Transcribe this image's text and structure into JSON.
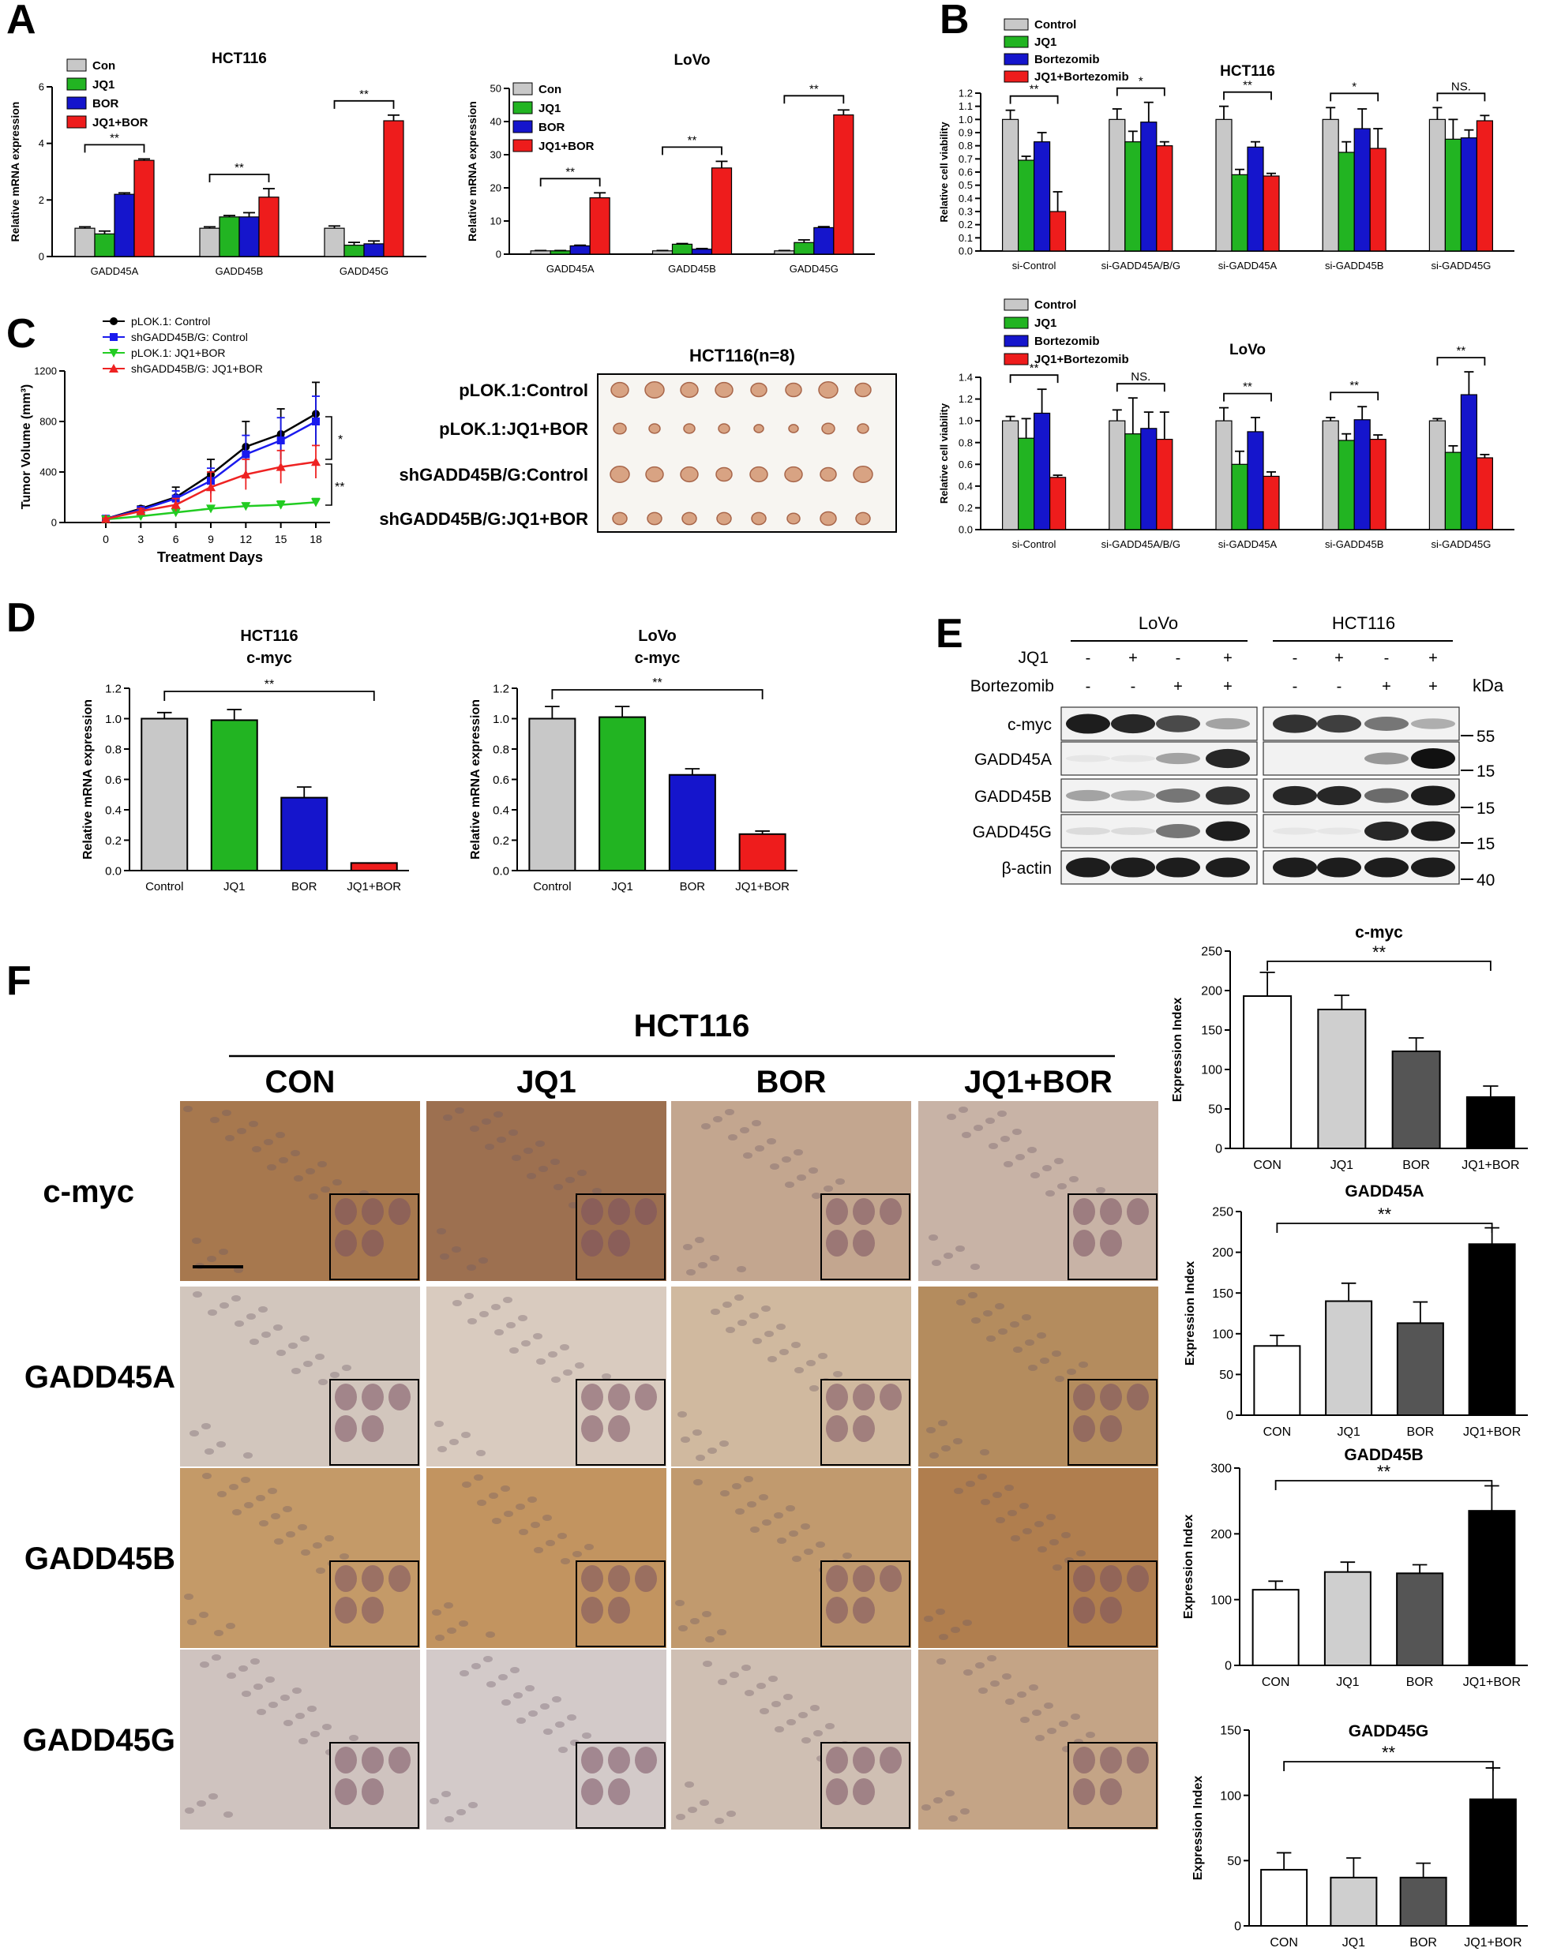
{
  "panels": {
    "A": "A",
    "B": "B",
    "C": "C",
    "D": "D",
    "E": "E",
    "F": "F"
  },
  "colors": {
    "con": "#c8c8c8",
    "jq1": "#22b422",
    "bor": "#1515cc",
    "combo": "#ee1c1c",
    "line_ctrl": "#000000",
    "line_sh_ctrl": "#1a1aee",
    "line_plok_combo": "#22cc22",
    "line_sh_combo": "#ee2222"
  },
  "panel_c_photo": {
    "title": "HCT116(n=8)",
    "rows": [
      "pLOK.1:Control",
      "pLOK.1:JQ1+BOR",
      "shGADD45B/G:Control",
      "shGADD45B/G:JQ1+BOR"
    ]
  },
  "panel_e": {
    "groups": [
      "LoVo",
      "HCT116"
    ],
    "treatment_labels": [
      "JQ1",
      "Bortezomib"
    ],
    "jq1_signs": [
      "-",
      "+",
      "-",
      "+",
      "-",
      "+",
      "-",
      "+"
    ],
    "bor_signs": [
      "-",
      "-",
      "+",
      "+",
      "-",
      "-",
      "+",
      "+"
    ],
    "kda_label": "kDa",
    "rows": [
      {
        "name": "c-myc",
        "marker": "55",
        "lovo": [
          0.95,
          0.9,
          0.75,
          0.35
        ],
        "hct": [
          0.85,
          0.8,
          0.55,
          0.3
        ]
      },
      {
        "name": "GADD45A",
        "marker": "15",
        "lovo": [
          0.05,
          0.05,
          0.35,
          0.9
        ],
        "hct": [
          0.0,
          0.0,
          0.4,
          1.0
        ]
      },
      {
        "name": "GADD45B",
        "marker": "15",
        "lovo": [
          0.35,
          0.3,
          0.55,
          0.85
        ],
        "hct": [
          0.9,
          0.9,
          0.6,
          0.95
        ]
      },
      {
        "name": "GADD45G",
        "marker": "15",
        "lovo": [
          0.1,
          0.1,
          0.55,
          0.95
        ],
        "hct": [
          0.05,
          0.05,
          0.9,
          0.95
        ]
      },
      {
        "name": "β-actin",
        "marker": "40",
        "lovo": [
          0.95,
          0.95,
          0.95,
          0.95
        ],
        "hct": [
          0.95,
          0.95,
          0.95,
          0.95
        ]
      }
    ]
  },
  "panel_f_ihc": {
    "title": "HCT116",
    "columns": [
      "CON",
      "JQ1",
      "BOR",
      "JQ1+BOR"
    ],
    "rows": [
      "c-myc",
      "GADD45A",
      "GADD45B",
      "GADD45G"
    ],
    "stain_tint": [
      [
        "#a7784e",
        "#9d7050",
        "#c3a68f",
        "#c8b3a6"
      ],
      [
        "#d2c6bd",
        "#d9cbbf",
        "#d0b99f",
        "#b48c5e"
      ],
      [
        "#c49a68",
        "#c29460",
        "#c19a6e",
        "#b07e4e"
      ],
      [
        "#cfc3bf",
        "#d3cac9",
        "#cfbfb3",
        "#c4a486"
      ]
    ]
  },
  "chart_data": [
    {
      "id": "A1",
      "type": "bar",
      "title": "HCT116",
      "ylabel": "Relative mRNA expression",
      "ylim": [
        0,
        6
      ],
      "yticks": [
        0,
        2,
        4,
        6
      ],
      "categories": [
        "GADD45A",
        "GADD45B",
        "GADD45G"
      ],
      "series": [
        {
          "name": "Con",
          "values": [
            1.0,
            1.0,
            1.0
          ],
          "err": [
            0.05,
            0.05,
            0.08
          ]
        },
        {
          "name": "JQ1",
          "values": [
            0.8,
            1.4,
            0.4
          ],
          "err": [
            0.1,
            0.05,
            0.1
          ]
        },
        {
          "name": "BOR",
          "values": [
            2.2,
            1.4,
            0.45
          ],
          "err": [
            0.05,
            0.15,
            0.1
          ]
        },
        {
          "name": "JQ1+BOR",
          "values": [
            3.4,
            2.1,
            4.8
          ],
          "err": [
            0.05,
            0.3,
            0.2
          ]
        }
      ],
      "annotations": [
        "**",
        "**",
        "**"
      ]
    },
    {
      "id": "A2",
      "type": "bar",
      "title": "LoVo",
      "ylabel": "Relative mRNA expression",
      "ylim": [
        0,
        50
      ],
      "yticks": [
        0,
        10,
        20,
        30,
        40,
        50
      ],
      "categories": [
        "GADD45A",
        "GADD45B",
        "GADD45G"
      ],
      "series": [
        {
          "name": "Con",
          "values": [
            1.0,
            1.0,
            1.0
          ],
          "err": [
            0.1,
            0.1,
            0.1
          ]
        },
        {
          "name": "JQ1",
          "values": [
            1.0,
            3.0,
            3.5
          ],
          "err": [
            0.1,
            0.2,
            0.8
          ]
        },
        {
          "name": "BOR",
          "values": [
            2.5,
            1.5,
            8.0
          ],
          "err": [
            0.2,
            0.2,
            0.3
          ]
        },
        {
          "name": "JQ1+BOR",
          "values": [
            17.0,
            26.0,
            42.0
          ],
          "err": [
            1.5,
            2.0,
            1.5
          ]
        }
      ],
      "annotations": [
        "**",
        "**",
        "**"
      ]
    },
    {
      "id": "B1",
      "type": "bar",
      "title": "HCT116",
      "ylabel": "Relative cell viability",
      "ylim": [
        0,
        1.2
      ],
      "yticks": [
        0.0,
        0.1,
        0.2,
        0.3,
        0.4,
        0.5,
        0.6,
        0.7,
        0.8,
        0.9,
        1.0,
        1.1,
        1.2
      ],
      "categories": [
        "si-Control",
        "si-GADD45A/B/G",
        "si-GADD45A",
        "si-GADD45B",
        "si-GADD45G"
      ],
      "series": [
        {
          "name": "Control",
          "values": [
            1.0,
            1.0,
            1.0,
            1.0,
            1.0
          ],
          "err": [
            0.07,
            0.08,
            0.1,
            0.09,
            0.09
          ]
        },
        {
          "name": "JQ1",
          "values": [
            0.69,
            0.83,
            0.58,
            0.75,
            0.85
          ],
          "err": [
            0.03,
            0.08,
            0.04,
            0.08,
            0.15
          ]
        },
        {
          "name": "Bortezomib",
          "values": [
            0.83,
            0.98,
            0.79,
            0.93,
            0.86
          ],
          "err": [
            0.07,
            0.15,
            0.04,
            0.15,
            0.06
          ]
        },
        {
          "name": "JQ1+Bortezomib",
          "values": [
            0.3,
            0.8,
            0.57,
            0.78,
            0.99
          ],
          "err": [
            0.15,
            0.03,
            0.02,
            0.15,
            0.04
          ]
        }
      ],
      "annotations": [
        "**",
        "*",
        "**",
        "*",
        "NS."
      ]
    },
    {
      "id": "B2",
      "type": "bar",
      "title": "LoVo",
      "ylabel": "Relative cell viability",
      "ylim": [
        0,
        1.4
      ],
      "yticks": [
        0.0,
        0.2,
        0.4,
        0.6,
        0.8,
        1.0,
        1.2,
        1.4
      ],
      "categories": [
        "si-Control",
        "si-GADD45A/B/G",
        "si-GADD45A",
        "si-GADD45B",
        "si-GADD45G"
      ],
      "series": [
        {
          "name": "Control",
          "values": [
            1.0,
            1.0,
            1.0,
            1.0,
            1.0
          ],
          "err": [
            0.04,
            0.1,
            0.12,
            0.03,
            0.02
          ]
        },
        {
          "name": "JQ1",
          "values": [
            0.84,
            0.88,
            0.6,
            0.82,
            0.71
          ],
          "err": [
            0.18,
            0.33,
            0.12,
            0.06,
            0.06
          ]
        },
        {
          "name": "Bortezomib",
          "values": [
            1.07,
            0.93,
            0.9,
            1.01,
            1.24
          ],
          "err": [
            0.22,
            0.15,
            0.13,
            0.12,
            0.21
          ]
        },
        {
          "name": "JQ1+Bortezomib",
          "values": [
            0.48,
            0.83,
            0.49,
            0.83,
            0.66
          ],
          "err": [
            0.02,
            0.25,
            0.04,
            0.04,
            0.03
          ]
        }
      ],
      "annotations": [
        "**",
        "NS.",
        "**",
        "**",
        "**"
      ]
    },
    {
      "id": "C",
      "type": "line",
      "xlabel": "Treatment Days",
      "ylabel": "Tumor Volume (mm³)",
      "ylim": [
        0,
        1200
      ],
      "yticks": [
        0,
        400,
        800,
        1200
      ],
      "x": [
        0,
        3,
        6,
        9,
        12,
        15,
        18
      ],
      "series": [
        {
          "name": "pLOK.1: Control",
          "values": [
            30,
            110,
            200,
            380,
            600,
            700,
            860
          ],
          "err": [
            5,
            20,
            80,
            120,
            200,
            200,
            250
          ]
        },
        {
          "name": "shGADD45B/G: Control",
          "values": [
            30,
            100,
            190,
            330,
            540,
            650,
            800
          ],
          "err": [
            5,
            20,
            60,
            100,
            150,
            180,
            200
          ]
        },
        {
          "name": "pLOK.1: JQ1+BOR",
          "values": [
            25,
            50,
            80,
            110,
            130,
            140,
            160
          ],
          "err": [
            3,
            10,
            20,
            20,
            25,
            30,
            30
          ]
        },
        {
          "name": "shGADD45B/G: JQ1+BOR",
          "values": [
            28,
            90,
            140,
            280,
            380,
            440,
            480
          ],
          "err": [
            5,
            20,
            50,
            120,
            120,
            130,
            130
          ]
        }
      ],
      "annotations": [
        "*",
        "**"
      ]
    },
    {
      "id": "D1",
      "type": "bar",
      "title": "HCT116",
      "subtitle": "c-myc",
      "ylabel": "Relative mRNA expression",
      "ylim": [
        0,
        1.2
      ],
      "yticks": [
        0.0,
        0.2,
        0.4,
        0.6,
        0.8,
        1.0,
        1.2
      ],
      "categories": [
        "Control",
        "JQ1",
        "BOR",
        "JQ1+BOR"
      ],
      "values": [
        1.0,
        0.99,
        0.48,
        0.05
      ],
      "err": [
        0.04,
        0.07,
        0.07,
        0.0
      ],
      "annotations": [
        "**"
      ]
    },
    {
      "id": "D2",
      "type": "bar",
      "title": "LoVo",
      "subtitle": "c-myc",
      "ylabel": "Relative mRNA expression",
      "ylim": [
        0,
        1.2
      ],
      "yticks": [
        0.0,
        0.2,
        0.4,
        0.6,
        0.8,
        1.0,
        1.2
      ],
      "categories": [
        "Control",
        "JQ1",
        "BOR",
        "JQ1+BOR"
      ],
      "values": [
        1.0,
        1.01,
        0.63,
        0.24
      ],
      "err": [
        0.08,
        0.07,
        0.04,
        0.02
      ],
      "annotations": [
        "**"
      ]
    },
    {
      "id": "F1",
      "type": "bar",
      "title": "c-myc",
      "ylabel": "Expression Index",
      "ylim": [
        0,
        250
      ],
      "yticks": [
        0,
        50,
        100,
        150,
        200,
        250
      ],
      "categories": [
        "CON",
        "JQ1",
        "BOR",
        "JQ1+BOR"
      ],
      "values": [
        193,
        176,
        123,
        65
      ],
      "err": [
        30,
        18,
        17,
        14
      ],
      "annotations": [
        "**"
      ]
    },
    {
      "id": "F2",
      "type": "bar",
      "title": "GADD45A",
      "ylabel": "Expression Index",
      "ylim": [
        0,
        250
      ],
      "yticks": [
        0,
        50,
        100,
        150,
        200,
        250
      ],
      "categories": [
        "CON",
        "JQ1",
        "BOR",
        "JQ1+BOR"
      ],
      "values": [
        85,
        140,
        113,
        210
      ],
      "err": [
        13,
        22,
        26,
        20
      ],
      "annotations": [
        "**"
      ]
    },
    {
      "id": "F3",
      "type": "bar",
      "title": "GADD45B",
      "ylabel": "Expression Index",
      "ylim": [
        0,
        300
      ],
      "yticks": [
        0,
        100,
        200,
        300
      ],
      "categories": [
        "CON",
        "JQ1",
        "BOR",
        "JQ1+BOR"
      ],
      "values": [
        115,
        142,
        140,
        235
      ],
      "err": [
        13,
        15,
        13,
        38
      ],
      "annotations": [
        "**"
      ]
    },
    {
      "id": "F4",
      "type": "bar",
      "title": "GADD45G",
      "ylabel": "Expression Index",
      "ylim": [
        0,
        150
      ],
      "yticks": [
        0,
        50,
        100,
        150
      ],
      "categories": [
        "CON",
        "JQ1",
        "BOR",
        "JQ1+BOR"
      ],
      "values": [
        43,
        37,
        37,
        97
      ],
      "err": [
        13,
        15,
        11,
        24
      ],
      "annotations": [
        "**"
      ]
    }
  ]
}
